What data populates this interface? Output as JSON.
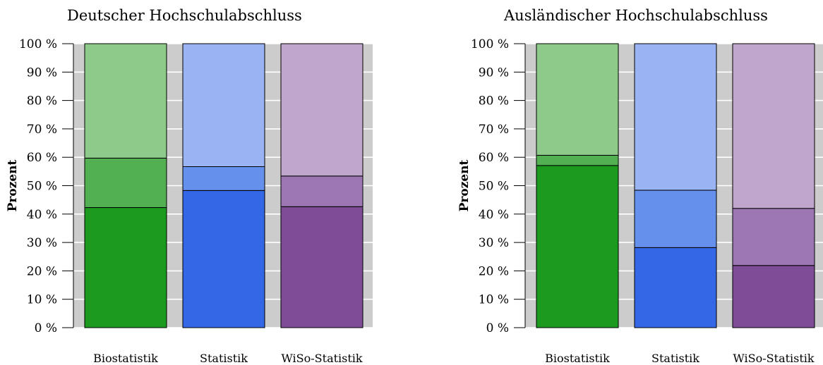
{
  "chart_data": [
    {
      "type": "bar",
      "stacked": true,
      "title": "Deutscher Hochschulabschluss",
      "ylabel": "Prozent",
      "ylim": [
        0,
        100
      ],
      "yticks": [
        "0 %",
        "10 %",
        "20 %",
        "30 %",
        "40 %",
        "50 %",
        "60 %",
        "70 %",
        "80 %",
        "90 %",
        "100 %"
      ],
      "grid": true,
      "categories": [
        "Biostatistik",
        "Statistik",
        "WiSo-Statistik"
      ],
      "segments": [
        {
          "values": [
            42.3,
            48.3,
            42.6
          ]
        },
        {
          "values": [
            17.4,
            8.4,
            10.8
          ]
        },
        {
          "values": [
            40.3,
            43.3,
            46.6
          ]
        }
      ]
    },
    {
      "type": "bar",
      "stacked": true,
      "title": "Ausländischer Hochschulabschluss",
      "ylabel": "Prozent",
      "ylim": [
        0,
        100
      ],
      "yticks": [
        "0 %",
        "10 %",
        "20 %",
        "30 %",
        "40 %",
        "50 %",
        "60 %",
        "70 %",
        "80 %",
        "90 %",
        "100 %"
      ],
      "grid": true,
      "categories": [
        "Biostatistik",
        "Statistik",
        "WiSo-Statistik"
      ],
      "segments": [
        {
          "values": [
            57.1,
            28.2,
            21.9
          ]
        },
        {
          "values": [
            3.6,
            20.2,
            20.1
          ]
        },
        {
          "values": [
            39.3,
            51.6,
            58.0
          ]
        }
      ]
    }
  ],
  "colors": {
    "panel_background": "#cccccc",
    "grid": "#ffffff",
    "category_colors": [
      [
        "#1b9a1e",
        "#52af52",
        "#8ecb8b"
      ],
      [
        "#3467e6",
        "#6590ec",
        "#9ab3f2"
      ],
      [
        "#7f4c97",
        "#9d77b3",
        "#c0a6cd"
      ]
    ]
  }
}
